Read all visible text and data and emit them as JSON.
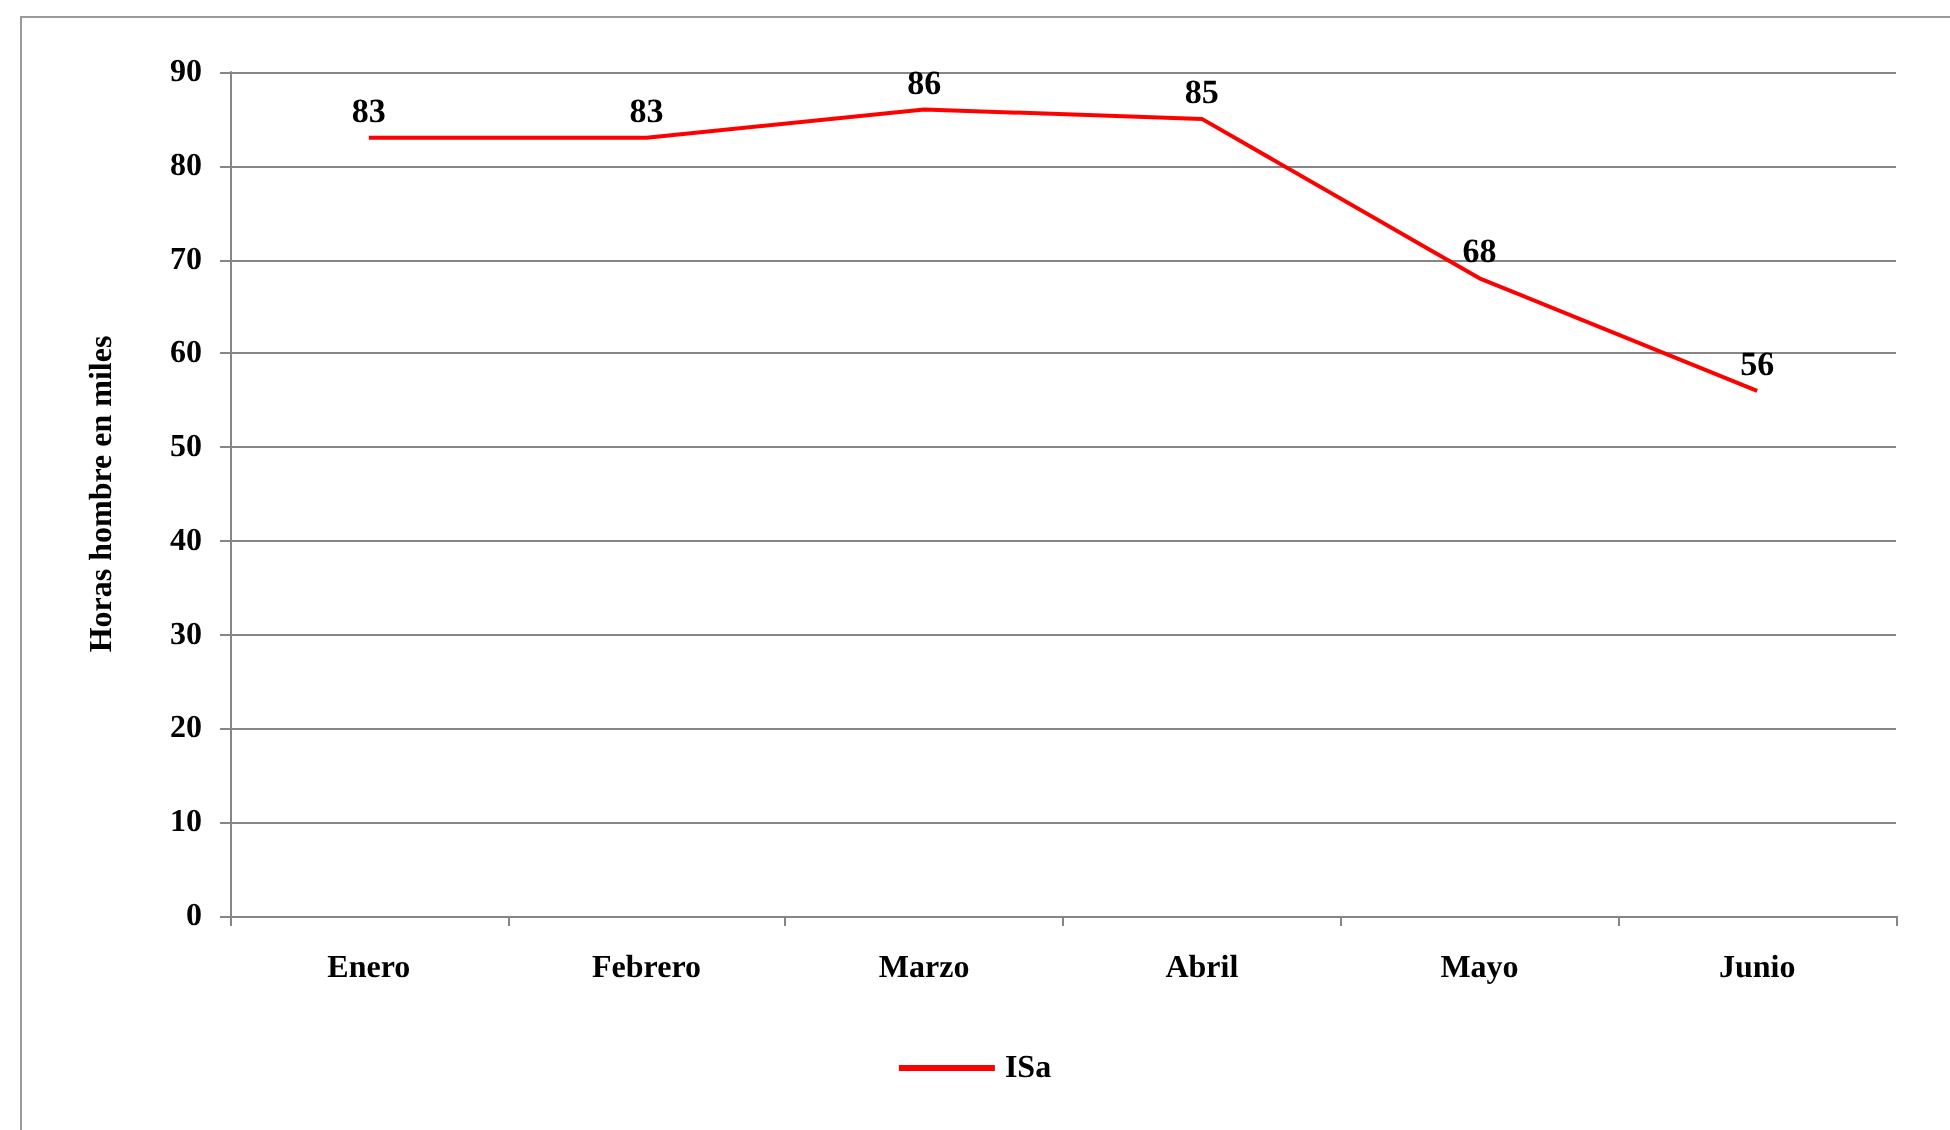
{
  "chart_data": {
    "type": "line",
    "ylabel": "Horas hombre en miles",
    "categories": [
      "Enero",
      "Febrero",
      "Marzo",
      "Abril",
      "Mayo",
      "Junio"
    ],
    "series": [
      {
        "name": "ISa",
        "color": "#ff0000",
        "values": [
          83,
          83,
          86,
          85,
          68,
          56
        ]
      }
    ],
    "ylim": [
      0,
      90
    ],
    "yticks": [
      0,
      10,
      20,
      30,
      40,
      50,
      60,
      70,
      80,
      90
    ],
    "grid": "y",
    "legend": "bottom",
    "marker": "none",
    "line_style": "solid",
    "data_labels": true
  }
}
